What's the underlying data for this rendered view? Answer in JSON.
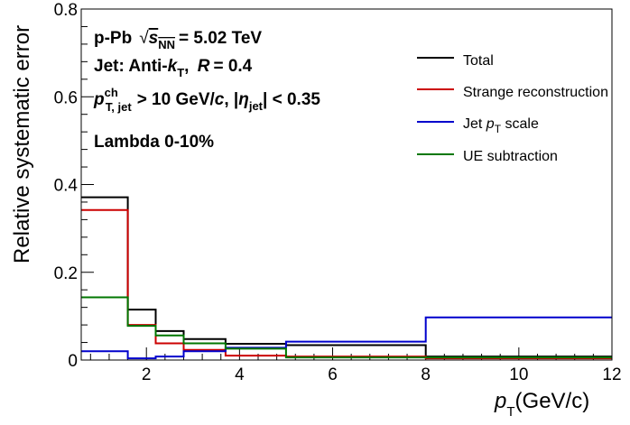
{
  "chart_data": {
    "type": "line",
    "step": true,
    "xlabel": "p_T(GeV/c)",
    "ylabel": "Relative systematic error",
    "xlim": [
      0.6,
      12
    ],
    "ylim": [
      0,
      0.8
    ],
    "x_ticks": [
      "2",
      "4",
      "6",
      "8",
      "10",
      "12"
    ],
    "y_ticks": [
      "0",
      "0.2",
      "0.4",
      "0.6",
      "0.8"
    ],
    "bin_edges": [
      0.6,
      1.6,
      2.2,
      2.8,
      3.7,
      5.0,
      8.0,
      12.0
    ],
    "series": [
      {
        "name": "Total",
        "color": "#000000",
        "values": [
          0.371,
          0.115,
          0.066,
          0.048,
          0.037,
          0.034,
          0.008
        ]
      },
      {
        "name": "Strange reconstruction",
        "color": "#cc0000",
        "values": [
          0.342,
          0.08,
          0.038,
          0.023,
          0.01,
          0.008,
          0.004
        ]
      },
      {
        "name": "Jet p_T scale",
        "color": "#0000cc",
        "values": [
          0.02,
          0.004,
          0.008,
          0.02,
          0.028,
          0.042,
          0.097
        ]
      },
      {
        "name": "UE subtraction",
        "color": "#007700",
        "values": [
          0.143,
          0.078,
          0.056,
          0.038,
          0.026,
          0.006,
          0.006
        ]
      }
    ],
    "legend_position": "top-right",
    "annotations": {
      "system": "p-Pb",
      "energy": "= 5.02 TeV",
      "jet": "Jet: Anti-",
      "radius": "= 0.4",
      "cut_tail": "> 10 GeV/",
      "eta_tail": "| < 0.35",
      "sample": "Lambda 0-10%"
    }
  }
}
